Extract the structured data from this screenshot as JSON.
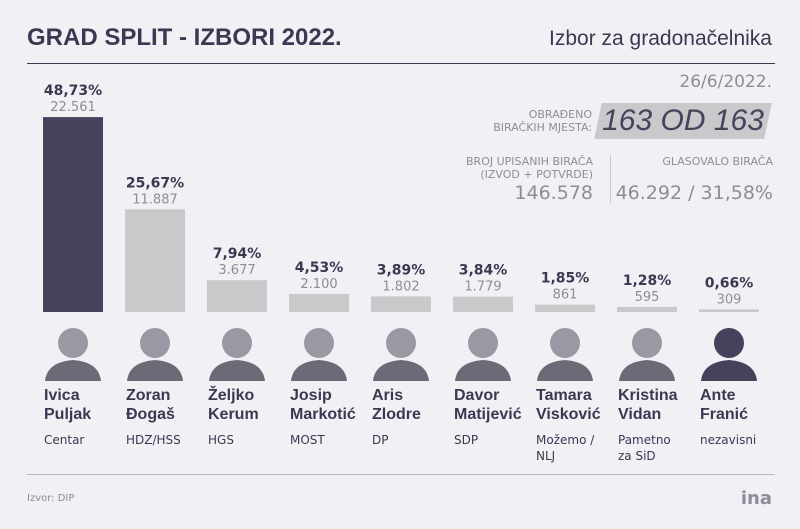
{
  "chart_data": {
    "type": "bar",
    "title": "GRAD SPLIT - IZBORI 2022.",
    "subtitle": "Izbor za gradonačelnika",
    "date": "26/6/2022.",
    "categories": [
      "Ivica Puljak",
      "Zoran Đogaš",
      "Željko Kerum",
      "Josip Markotić",
      "Aris Zlodre",
      "Davor Matijević",
      "Tamara Visković",
      "Kristina Vidan",
      "Ante Franić"
    ],
    "parties": [
      "Centar",
      "HDZ/HSS",
      "HGS",
      "MOST",
      "DP",
      "SDP",
      "Možemo / NLJ",
      "Pametno za SiD",
      "nezavisni"
    ],
    "values": [
      48.73,
      25.67,
      7.94,
      4.53,
      3.89,
      3.84,
      1.85,
      1.28,
      0.66
    ],
    "value_labels": [
      "48,73%",
      "25,67%",
      "7,94%",
      "4,53%",
      "3,89%",
      "3,84%",
      "1,85%",
      "1,28%",
      "0,66%"
    ],
    "votes": [
      22561,
      11887,
      3677,
      2100,
      1802,
      1779,
      861,
      595,
      309
    ],
    "votes_labels": [
      "22.561",
      "11.887",
      "3.677",
      "2.100",
      "1.802",
      "1.779",
      "861",
      "595",
      "309"
    ],
    "colors": [
      "#47425c",
      "#c9c9cb",
      "#c9c9cb",
      "#c9c9cb",
      "#c9c9cb",
      "#c9c9cb",
      "#c9c9cb",
      "#c9c9cb",
      "#c9c9cb"
    ],
    "stats": {
      "processed_label": "OBRAĐENO BIRAČKIH MJESTA:",
      "processed_value": "163 OD 163",
      "registered_label": "BROJ UPISANIH BIRAČA (IZVOD + POTVRDE)",
      "registered_value": "146.578",
      "voted_label": "GLASOVALO BIRAČA",
      "voted_value": "46.292 / 31,58%"
    },
    "source": "Izvor: DIP",
    "logo": "ina"
  }
}
